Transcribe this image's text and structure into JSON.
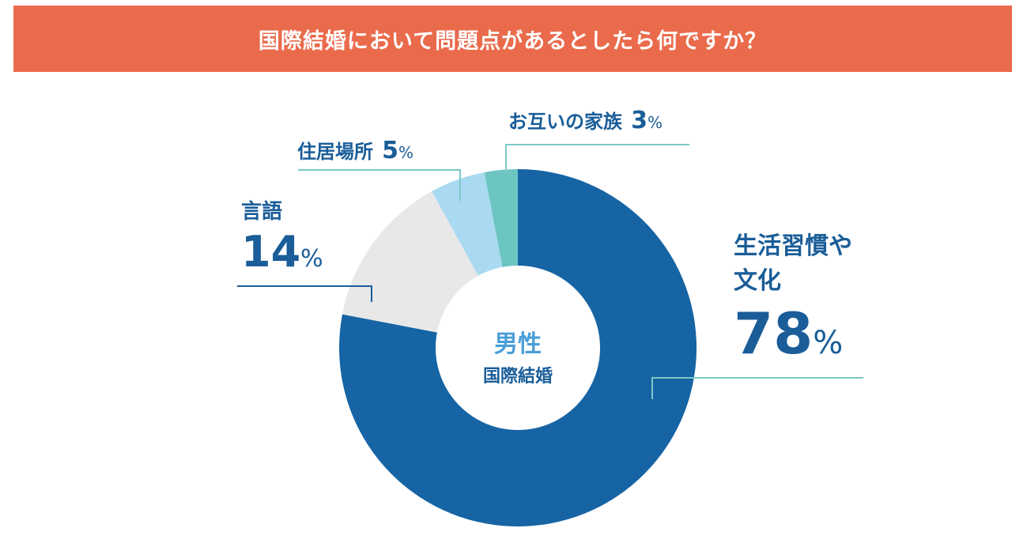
{
  "header": {
    "title": "国際結婚において問題点があるとしたら何ですか？"
  },
  "center": {
    "line1": "男性",
    "line2": "国際結婚"
  },
  "chart_data": {
    "type": "pie",
    "title": "国際結婚において問題点があるとしたら何ですか？",
    "slices": [
      {
        "label": "生活習慣や文化",
        "label_line1": "生活習慣や",
        "label_line2": "文化",
        "value": 78,
        "value_text": "78",
        "unit": "%",
        "color": "#1664a4"
      },
      {
        "label": "言語",
        "value": 14,
        "value_text": "14",
        "unit": "%",
        "color": "#e8e8e8"
      },
      {
        "label": "住居場所",
        "value": 5,
        "value_text": "5",
        "unit": "%",
        "color": "#a9daf1"
      },
      {
        "label": "お互いの家族",
        "value": 3,
        "value_text": "3",
        "unit": "%",
        "color": "#6cc5c1"
      }
    ],
    "leader_color": "#7cc8c8"
  }
}
